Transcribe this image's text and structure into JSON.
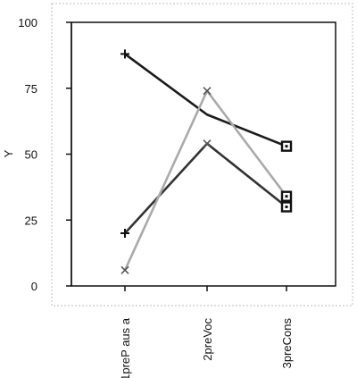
{
  "chart_data": {
    "type": "line",
    "title": "",
    "xlabel": "",
    "ylabel": "Y",
    "categories": [
      "1preP aus a",
      "2preVoc",
      "3preCons"
    ],
    "ylim": [
      0,
      100
    ],
    "yticks": [
      0,
      25,
      50,
      75,
      100
    ],
    "grid": false,
    "legend": "none",
    "series": [
      {
        "values": [
          88,
          65,
          53
        ],
        "color": "#1a1a1a",
        "markers": [
          "plus",
          "none",
          "square"
        ]
      },
      {
        "values": [
          20,
          54,
          30
        ],
        "color": "#333333",
        "markers": [
          "plus",
          "x",
          "square"
        ]
      },
      {
        "values": [
          6,
          74,
          34
        ],
        "color": "#aaaaaa",
        "markers": [
          "x",
          "x",
          "square"
        ]
      }
    ]
  }
}
